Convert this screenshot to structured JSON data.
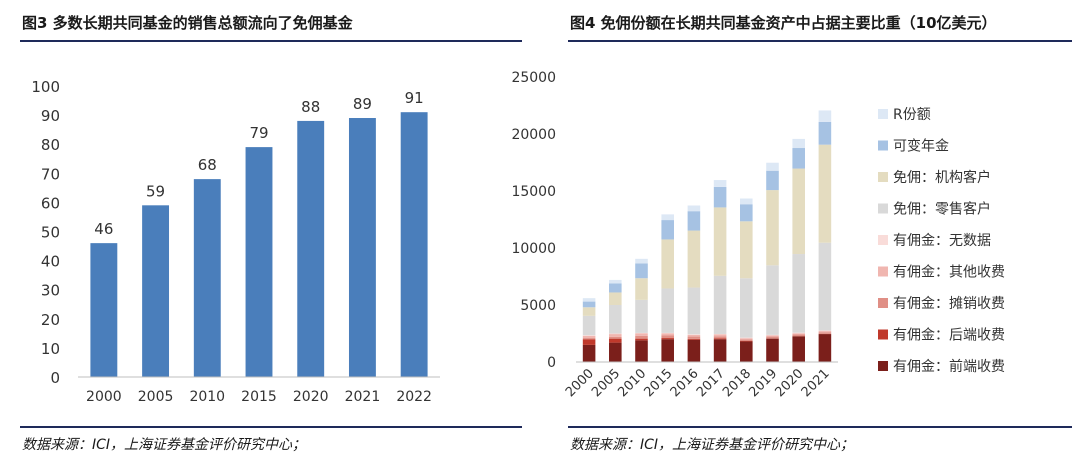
{
  "left_panel": {
    "title": "图3 多数长期共同基金的销售总额流向了免佣基金",
    "source": "数据来源：ICI，上海证券基金评价研究中心；"
  },
  "right_panel": {
    "title": "图4 免佣份额在长期共同基金资产中占据主要比重（10亿美元）",
    "source": "数据来源：ICI，上海证券基金评价研究中心；"
  },
  "chart_data": [
    {
      "type": "bar",
      "categories": [
        "2000",
        "2005",
        "2010",
        "2015",
        "2020",
        "2021",
        "2022"
      ],
      "values": [
        46,
        59,
        68,
        79,
        88,
        89,
        91
      ],
      "ylim": [
        0,
        100
      ],
      "yticks": [
        0,
        10,
        20,
        30,
        40,
        50,
        60,
        70,
        80,
        90,
        100
      ],
      "data_labels": true,
      "bar_color": "#4a7ebb",
      "grid": false
    },
    {
      "type": "bar",
      "stacked": true,
      "categories": [
        "2000",
        "2005",
        "2010",
        "2015",
        "2016",
        "2017",
        "2018",
        "2019",
        "2020",
        "2021"
      ],
      "ylim": [
        0,
        25000
      ],
      "yticks": [
        0,
        5000,
        10000,
        15000,
        20000,
        25000
      ],
      "legend_position": "right",
      "grid": false,
      "series": [
        {
          "name": "有佣金：前端收费",
          "color": "#7b1f1b",
          "values": [
            1500,
            1700,
            1900,
            2000,
            1950,
            2000,
            1800,
            2050,
            2250,
            2450
          ]
        },
        {
          "name": "有佣金：后端收费",
          "color": "#c0392b",
          "values": [
            500,
            350,
            150,
            100,
            80,
            60,
            40,
            30,
            20,
            15
          ]
        },
        {
          "name": "有佣金：摊销收费",
          "color": "#e08f86",
          "values": [
            100,
            150,
            250,
            250,
            200,
            200,
            150,
            150,
            150,
            150
          ]
        },
        {
          "name": "有佣金：其他收费",
          "color": "#f0b6b0",
          "values": [
            200,
            250,
            200,
            150,
            150,
            150,
            100,
            100,
            100,
            100
          ]
        },
        {
          "name": "有佣金：无数据",
          "color": "#f9dcd9",
          "values": [
            50,
            50,
            50,
            50,
            50,
            50,
            50,
            50,
            50,
            50
          ]
        },
        {
          "name": "免佣：零售客户",
          "color": "#d9d9d9",
          "values": [
            1700,
            2500,
            2900,
            3900,
            4100,
            5100,
            5200,
            6100,
            6900,
            7700
          ]
        },
        {
          "name": "免佣：机构客户",
          "color": "#e4dcc0",
          "values": [
            750,
            1100,
            1900,
            4300,
            5000,
            6000,
            5000,
            6600,
            7500,
            8600
          ]
        },
        {
          "name": "可变年金",
          "color": "#a6c2e3",
          "values": [
            500,
            800,
            1300,
            1700,
            1700,
            1800,
            1500,
            1700,
            1800,
            2000
          ]
        },
        {
          "name": "R份额",
          "color": "#dde8f5",
          "values": [
            300,
            300,
            400,
            500,
            500,
            600,
            500,
            700,
            800,
            1000
          ]
        }
      ]
    }
  ]
}
